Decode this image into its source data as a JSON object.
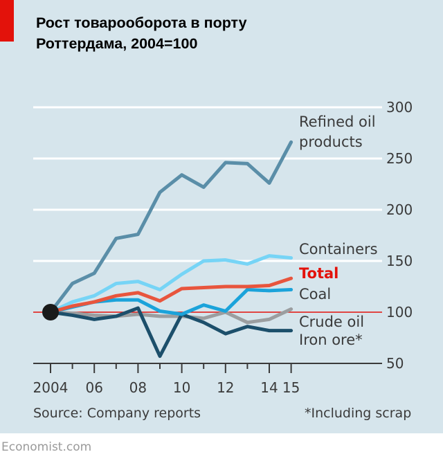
{
  "header": {
    "title_line1": "Рост товарооборота в порту",
    "title_line2": "Роттердама, 2004=100"
  },
  "footer": {
    "source": "Source: Company reports",
    "footnote": "*Including scrap",
    "brand": "Economist.com"
  },
  "colors": {
    "background": "#d6e5ec",
    "accent_red": "#e3120b",
    "refined_oil": "#5a8ea8",
    "containers": "#76d4f6",
    "total": "#e8553d",
    "coal": "#1ba3da",
    "crude_oil": "#9b9ea0",
    "iron_ore": "#1c4f6b"
  },
  "chart_data": {
    "type": "line",
    "title": "Рост товарооборота в порту Роттердама, 2004=100",
    "xlabel": "",
    "ylabel": "",
    "x": [
      2004,
      2005,
      2006,
      2007,
      2008,
      2009,
      2010,
      2011,
      2012,
      2013,
      2014,
      2015
    ],
    "x_tick_values": [
      2004,
      2006,
      2008,
      2010,
      2012,
      2014,
      2015
    ],
    "x_tick_labels": [
      "2004",
      "06",
      "08",
      "10",
      "12",
      "14",
      "15"
    ],
    "ylim": [
      50,
      300
    ],
    "y_ticks": [
      50,
      100,
      150,
      200,
      250,
      300
    ],
    "baseline": 100,
    "grid": true,
    "series": [
      {
        "name": "Refined oil",
        "name2": "products",
        "color": "#5a8ea8",
        "values": [
          100,
          128,
          138,
          172,
          176,
          217,
          234,
          222,
          246,
          245,
          226,
          266
        ]
      },
      {
        "name": "Containers",
        "color": "#76d4f6",
        "values": [
          100,
          110,
          116,
          128,
          130,
          122,
          137,
          150,
          151,
          147,
          155,
          153
        ]
      },
      {
        "name": "Total",
        "color": "#e8553d",
        "values": [
          100,
          106,
          110,
          116,
          119,
          111,
          123,
          124,
          125,
          125,
          126,
          133
        ]
      },
      {
        "name": "Coal",
        "color": "#1ba3da",
        "values": [
          100,
          105,
          110,
          112,
          112,
          101,
          98,
          107,
          101,
          122,
          121,
          122
        ]
      },
      {
        "name": "Crude oil",
        "color": "#9b9ea0",
        "values": [
          100,
          99,
          97,
          96,
          98,
          96,
          96,
          94,
          100,
          90,
          93,
          103
        ]
      },
      {
        "name": "Iron ore*",
        "color": "#1c4f6b",
        "values": [
          100,
          97,
          93,
          96,
          104,
          57,
          98,
          90,
          79,
          86,
          82,
          82
        ]
      }
    ]
  }
}
